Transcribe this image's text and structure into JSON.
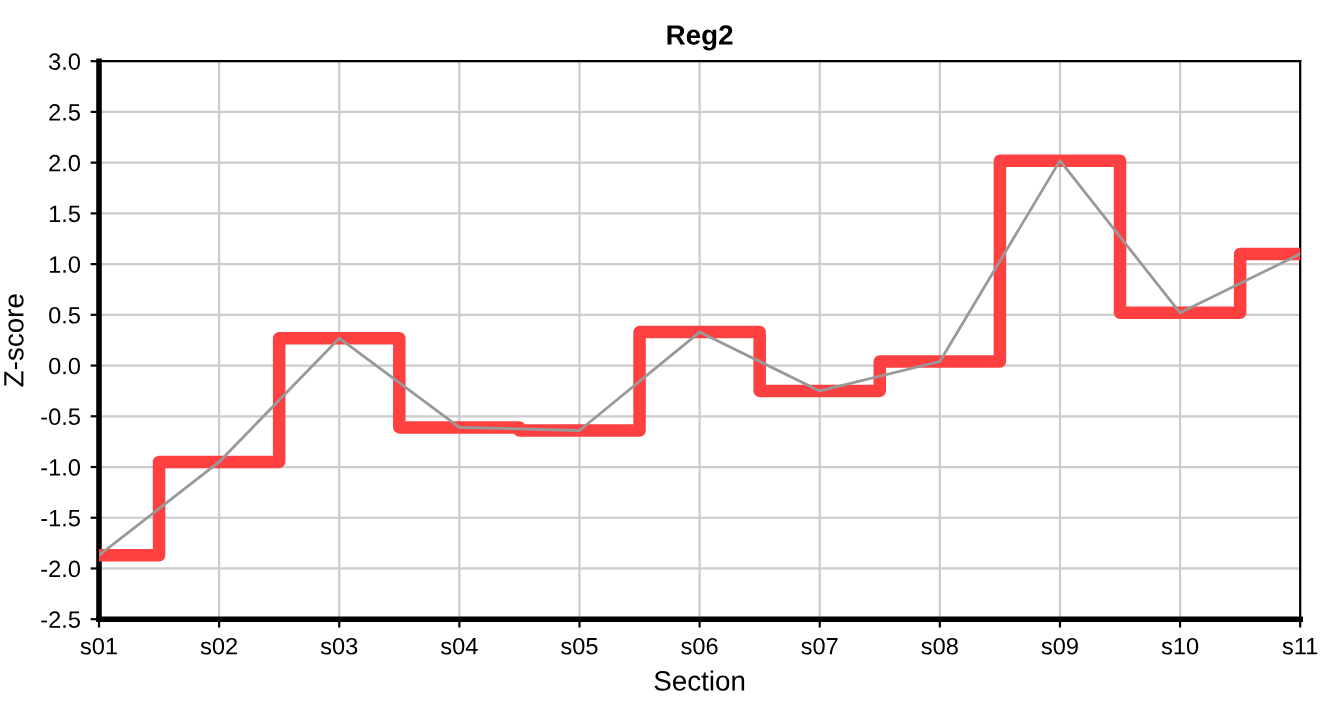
{
  "chart_data": {
    "type": "step",
    "title": "Reg2",
    "xlabel": "Section",
    "ylabel": "Z-score",
    "categories": [
      "s01",
      "s02",
      "s03",
      "s04",
      "s05",
      "s06",
      "s07",
      "s08",
      "s09",
      "s10",
      "s11"
    ],
    "series": [
      {
        "color": "#ff4040",
        "values": [
          -1.87,
          -0.95,
          0.27,
          -0.61,
          -0.64,
          0.33,
          -0.25,
          0.04,
          2.02,
          0.52,
          1.1
        ]
      },
      {
        "type": "line",
        "color": "#999999",
        "values": [
          -1.87,
          -0.95,
          0.27,
          -0.61,
          -0.64,
          0.33,
          -0.25,
          0.04,
          2.02,
          0.52,
          1.1
        ]
      }
    ],
    "ylim": [
      -2.5,
      3.0
    ],
    "yticks": [
      {
        "value": -2.5,
        "label": "-2.5"
      },
      {
        "value": -2.0,
        "label": "-2.0"
      },
      {
        "value": -1.5,
        "label": "-1.5"
      },
      {
        "value": -1.0,
        "label": "-1.0"
      },
      {
        "value": -0.5,
        "label": "-0.5"
      },
      {
        "value": 0,
        "label": "0.0"
      },
      {
        "value": 0.5,
        "label": "0.5"
      },
      {
        "value": 1.0,
        "label": "1.0"
      },
      {
        "value": 1.5,
        "label": "1.5"
      },
      {
        "value": 2.0,
        "label": "2.0"
      },
      {
        "value": 2.5,
        "label": "2.5"
      },
      {
        "value": 3.0,
        "label": "3.0"
      }
    ],
    "grid": true
  }
}
